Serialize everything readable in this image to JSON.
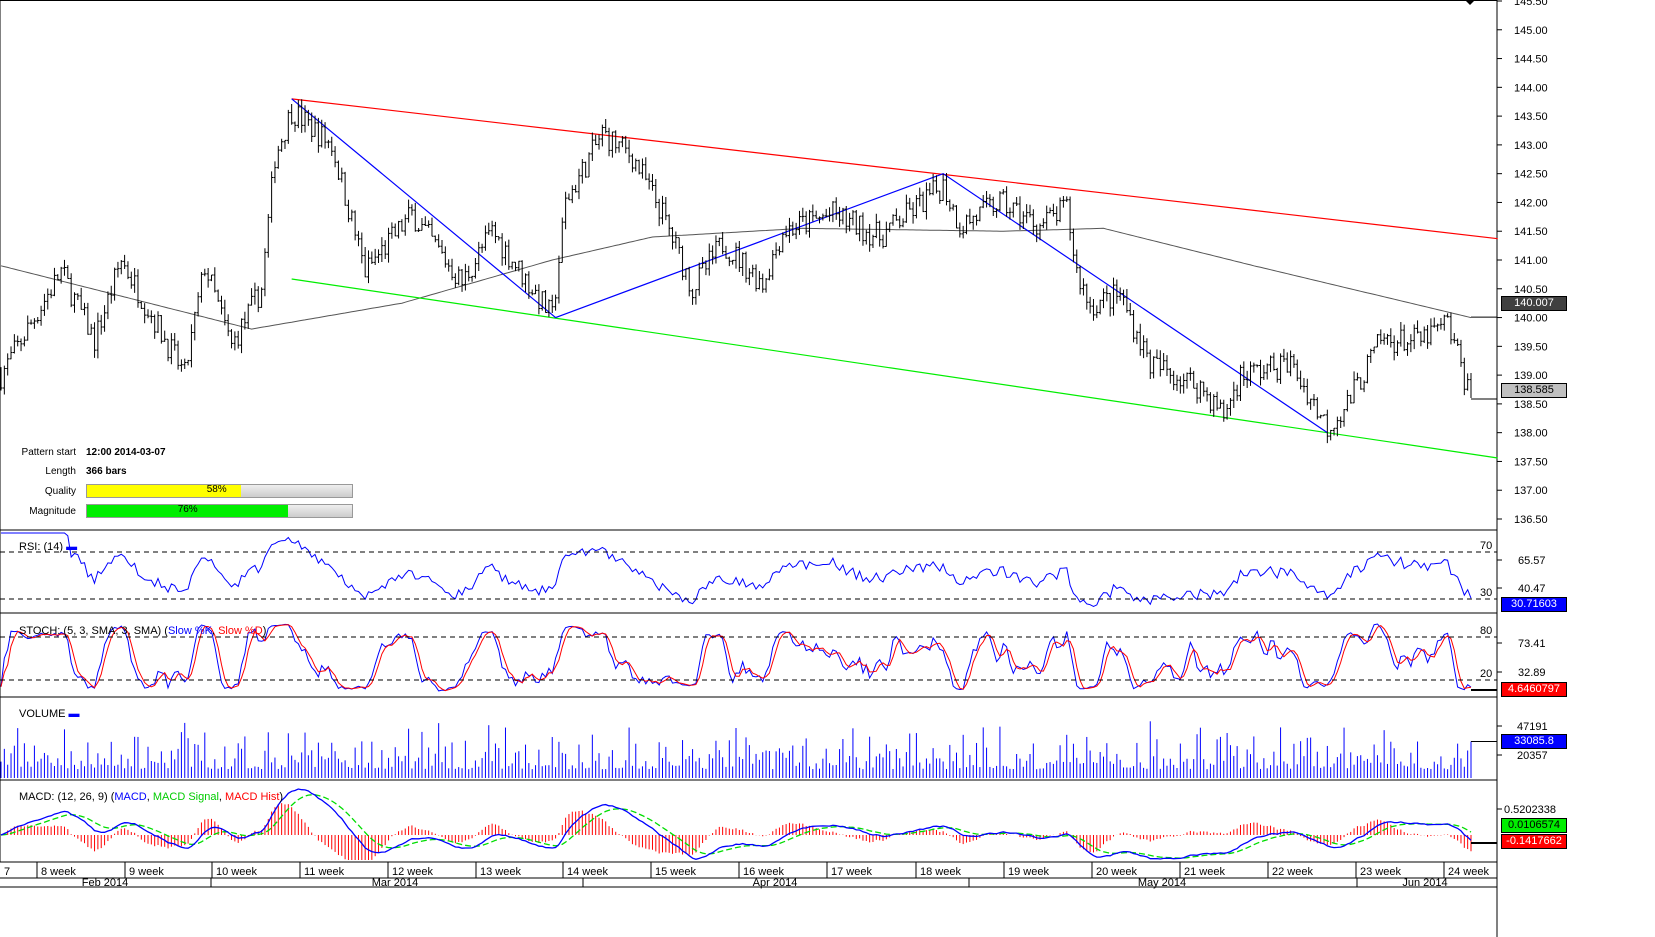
{
  "pattern_info": {
    "pattern_start_label": "Pattern start",
    "pattern_start_value": "12:00 2014-03-07",
    "length_label": "Length",
    "length_value": "366 bars",
    "quality_label": "Quality",
    "quality_value": "58%",
    "quality_fraction": 0.58,
    "magnitude_label": "Magnitude",
    "magnitude_value": "76%",
    "magnitude_fraction": 0.76
  },
  "colors": {
    "resistance": "#ff0000",
    "support": "#00ee00",
    "zigzag": "#0000ff",
    "moving_average": "#555555",
    "quality_fill": "#ffff00",
    "magnitude_fill": "#00ee00"
  },
  "chart_data": {
    "type": "ohlc",
    "title": "",
    "ylim": [
      136.5,
      145.5
    ],
    "y_ticks": [
      "145.50",
      "145.00",
      "144.50",
      "144.00",
      "143.50",
      "143.00",
      "142.50",
      "142.00",
      "141.50",
      "141.00",
      "140.50",
      "140.00",
      "139.50",
      "139.00",
      "138.50",
      "138.00",
      "137.50",
      "137.00",
      "136.50"
    ],
    "y_tick_values": [
      145.5,
      145.0,
      144.5,
      144.0,
      143.5,
      143.0,
      142.5,
      142.0,
      141.5,
      141.0,
      140.5,
      140.0,
      139.5,
      139.0,
      138.5,
      138.0,
      137.5,
      137.0,
      136.5
    ],
    "bars_total": 440,
    "close_path": [
      [
        0,
        139.0
      ],
      [
        18,
        140.8
      ],
      [
        28,
        139.6
      ],
      [
        36,
        141.0
      ],
      [
        55,
        139.0
      ],
      [
        61,
        140.9
      ],
      [
        69,
        139.5
      ],
      [
        78,
        140.5
      ],
      [
        82,
        142.8
      ],
      [
        87,
        143.6
      ],
      [
        99,
        143.0
      ],
      [
        109,
        140.8
      ],
      [
        123,
        141.8
      ],
      [
        138,
        140.6
      ],
      [
        147,
        141.5
      ],
      [
        165,
        140.0
      ],
      [
        169,
        142.0
      ],
      [
        180,
        143.2
      ],
      [
        189,
        142.8
      ],
      [
        198,
        141.8
      ],
      [
        207,
        140.5
      ],
      [
        216,
        141.3
      ],
      [
        228,
        140.6
      ],
      [
        234,
        141.5
      ],
      [
        249,
        141.8
      ],
      [
        263,
        141.4
      ],
      [
        282,
        142.3
      ],
      [
        287,
        141.6
      ],
      [
        299,
        142.0
      ],
      [
        311,
        141.6
      ],
      [
        319,
        141.9
      ],
      [
        322,
        140.8
      ],
      [
        326,
        140.2
      ],
      [
        335,
        140.4
      ],
      [
        344,
        139.2
      ],
      [
        359,
        138.8
      ],
      [
        366,
        138.3
      ],
      [
        371,
        139.0
      ],
      [
        386,
        139.2
      ],
      [
        397,
        138.1
      ],
      [
        403,
        138.5
      ],
      [
        413,
        139.6
      ],
      [
        425,
        139.6
      ],
      [
        433,
        139.9
      ],
      [
        440,
        138.6
      ]
    ],
    "moving_average_path": [
      [
        0,
        140.9
      ],
      [
        75,
        139.8
      ],
      [
        120,
        140.25
      ],
      [
        165,
        141.0
      ],
      [
        195,
        141.4
      ],
      [
        240,
        141.55
      ],
      [
        300,
        141.5
      ],
      [
        330,
        141.55
      ],
      [
        375,
        140.9
      ],
      [
        440,
        140.0
      ]
    ],
    "resistance_line": [
      [
        87,
        143.8
      ],
      [
        448,
        141.37
      ]
    ],
    "support_line": [
      [
        87,
        140.67
      ],
      [
        448,
        137.56
      ]
    ],
    "zigzag": [
      [
        87,
        143.8
      ],
      [
        166,
        140.0
      ],
      [
        282,
        142.5
      ],
      [
        397,
        138.0
      ]
    ],
    "last_price": "138.585",
    "ma_value": "140.007",
    "x_week_labels": [
      "7",
      "8 week",
      "9 week",
      "10 week",
      "11 week",
      "12 week",
      "13 week",
      "14 week",
      "15 week",
      "16 week",
      "17 week",
      "18 week",
      "19 week",
      "20 week",
      "21 week",
      "22 week",
      "23 week",
      "24 week"
    ],
    "x_month_labels": [
      "Feb 2014",
      "Mar 2014",
      "Apr 2014",
      "May 2014",
      "Jun 2014"
    ],
    "indicators": {
      "rsi": {
        "label": "RSI: (14)",
        "levels": [
          "70",
          "30"
        ],
        "level_values": [
          70,
          30
        ],
        "ticks": [
          "65.57",
          "40.47"
        ],
        "current": "30.71603",
        "color": "#0000ff"
      },
      "stoch": {
        "label_prefix": "STOCH: (5, 3, SMA, 3, SMA) (",
        "k_label": "Slow %K",
        "sep": ", ",
        "d_label": "Slow %D",
        "suffix": ")",
        "levels": [
          "80",
          "20"
        ],
        "level_values": [
          80,
          20
        ],
        "ticks": [
          "73.41",
          "32.89"
        ],
        "current": "4.6460797",
        "k_color": "#0000ff",
        "d_color": "#ff0000"
      },
      "volume": {
        "label": "VOLUME",
        "ticks": [
          "47191",
          "20357"
        ],
        "current": "33085.8",
        "color": "#0000ff"
      },
      "macd": {
        "label_prefix": "MACD: (12, 26, 9) (",
        "macd_label": "MACD",
        "sep1": ", ",
        "signal_label": "MACD Signal",
        "sep2": ", ",
        "hist_label": "MACD Hist",
        "suffix": ")",
        "ticks": [
          "0.5202338"
        ],
        "signal_current": "0.0106574",
        "current": "-0.1417662"
      }
    }
  }
}
